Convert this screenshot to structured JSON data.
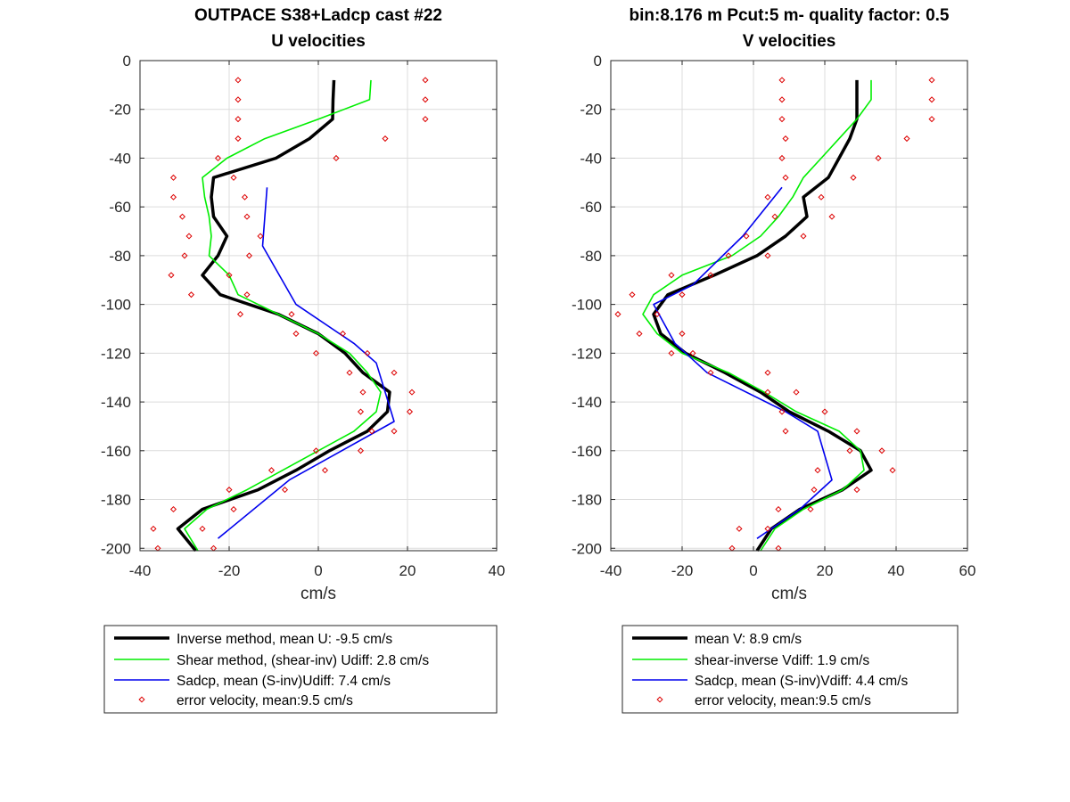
{
  "chart_data": [
    {
      "type": "line",
      "title": "OUTPACE S38+Ladcp cast #22",
      "subtitle": "U velocities",
      "xlabel": "cm/s",
      "ylabel": "",
      "xlim": [
        -40,
        40
      ],
      "ylim": [
        -201,
        0
      ],
      "xticks": [
        -40,
        -20,
        0,
        20,
        40
      ],
      "yticks": [
        0,
        -20,
        -40,
        -60,
        -80,
        -100,
        -120,
        -140,
        -160,
        -180,
        -200
      ],
      "grid": true,
      "legend_position": "below",
      "legend": [
        "Inverse method, mean U:  -9.5 cm/s",
        "Shear method, (shear-inv)  Udiff:  2.8 cm/s",
        "Sadcp, mean (S-inv)Udiff: 7.4 cm/s",
        "error velocity, mean:9.5 cm/s"
      ],
      "series": [
        {
          "color": "#000000",
          "style": "line-thick",
          "points": [
            [
              3.5,
              -8
            ],
            [
              3.3,
              -16
            ],
            [
              3.2,
              -24
            ],
            [
              -2,
              -32
            ],
            [
              -9.5,
              -40
            ],
            [
              -23.5,
              -48
            ],
            [
              -24,
              -56
            ],
            [
              -23.5,
              -64
            ],
            [
              -20.5,
              -72
            ],
            [
              -22.5,
              -80
            ],
            [
              -26,
              -88
            ],
            [
              -22,
              -96
            ],
            [
              -9,
              -104
            ],
            [
              0,
              -112
            ],
            [
              6,
              -120
            ],
            [
              10,
              -128
            ],
            [
              16,
              -136
            ],
            [
              15.5,
              -144
            ],
            [
              11,
              -152
            ],
            [
              2.5,
              -160
            ],
            [
              -5,
              -168
            ],
            [
              -13.5,
              -176
            ],
            [
              -26,
              -184
            ],
            [
              -31.5,
              -192
            ],
            [
              -27.5,
              -201
            ]
          ]
        },
        {
          "color": "#00ee00",
          "style": "line",
          "points": [
            [
              11.8,
              -8
            ],
            [
              11.5,
              -16
            ],
            [
              0,
              -24
            ],
            [
              -12,
              -32
            ],
            [
              -20.5,
              -40
            ],
            [
              -26,
              -48
            ],
            [
              -25.5,
              -56
            ],
            [
              -24.5,
              -64
            ],
            [
              -24,
              -72
            ],
            [
              -24.5,
              -80
            ],
            [
              -20,
              -88
            ],
            [
              -18,
              -96
            ],
            [
              -9,
              -104
            ],
            [
              0,
              -112
            ],
            [
              7,
              -120
            ],
            [
              11,
              -128
            ],
            [
              14,
              -136
            ],
            [
              13,
              -144
            ],
            [
              8,
              -152
            ],
            [
              0,
              -160
            ],
            [
              -8,
              -168
            ],
            [
              -16,
              -176
            ],
            [
              -25,
              -184
            ],
            [
              -30,
              -192
            ],
            [
              -27,
              -201
            ]
          ]
        },
        {
          "color": "#0000ee",
          "style": "line",
          "points": [
            [
              -11.5,
              -52
            ],
            [
              -12.5,
              -76
            ],
            [
              -5,
              -100
            ],
            [
              8,
              -116
            ],
            [
              13,
              -124
            ],
            [
              17,
              -148
            ],
            [
              -6.5,
              -172
            ],
            [
              -22.5,
              -196
            ]
          ]
        },
        {
          "color": "#dd0000",
          "style": "markers",
          "points": [
            [
              -18,
              -8
            ],
            [
              24,
              -8
            ],
            [
              -18,
              -16
            ],
            [
              24,
              -16
            ],
            [
              -18,
              -24
            ],
            [
              24,
              -24
            ],
            [
              -18,
              -32
            ],
            [
              15,
              -32
            ],
            [
              -22.5,
              -40
            ],
            [
              4,
              -40
            ],
            [
              -32.5,
              -48
            ],
            [
              -19,
              -48
            ],
            [
              -32.5,
              -56
            ],
            [
              -16.5,
              -56
            ],
            [
              -30.5,
              -64
            ],
            [
              -16,
              -64
            ],
            [
              -29,
              -72
            ],
            [
              -13,
              -72
            ],
            [
              -30,
              -80
            ],
            [
              -15.5,
              -80
            ],
            [
              -33,
              -88
            ],
            [
              -20,
              -88
            ],
            [
              -28.5,
              -96
            ],
            [
              -16,
              -96
            ],
            [
              -17.5,
              -104
            ],
            [
              -6,
              -104
            ],
            [
              -5,
              -112
            ],
            [
              5.5,
              -112
            ],
            [
              -0.5,
              -120
            ],
            [
              11,
              -120
            ],
            [
              7,
              -128
            ],
            [
              17,
              -128
            ],
            [
              10,
              -136
            ],
            [
              21,
              -136
            ],
            [
              9.5,
              -144
            ],
            [
              20.5,
              -144
            ],
            [
              12,
              -152
            ],
            [
              17,
              -152
            ],
            [
              -0.5,
              -160
            ],
            [
              9.5,
              -160
            ],
            [
              1.5,
              -168
            ],
            [
              -10.5,
              -168
            ],
            [
              -20,
              -176
            ],
            [
              -7.5,
              -176
            ],
            [
              -19,
              -184
            ],
            [
              -32.5,
              -184
            ],
            [
              -37,
              -192
            ],
            [
              -26,
              -192
            ],
            [
              -36,
              -200
            ],
            [
              -23.5,
              -200
            ]
          ]
        }
      ]
    },
    {
      "type": "line",
      "title": "bin:8.176 m  Pcut:5 m- quality factor:  0.5",
      "subtitle": "V velocities",
      "xlabel": "cm/s",
      "ylabel": "",
      "xlim": [
        -40,
        60
      ],
      "ylim": [
        -201,
        0
      ],
      "xticks": [
        -40,
        -20,
        0,
        20,
        40,
        60
      ],
      "yticks": [
        0,
        -20,
        -40,
        -60,
        -80,
        -100,
        -120,
        -140,
        -160,
        -180,
        -200
      ],
      "grid": true,
      "legend_position": "below",
      "legend": [
        "mean V:  8.9 cm/s",
        "shear-inverse Vdiff:  1.9 cm/s",
        "Sadcp, mean (S-inv)Vdiff: 4.4 cm/s",
        "error velocity, mean:9.5 cm/s"
      ],
      "series": [
        {
          "color": "#000000",
          "style": "line-thick",
          "points": [
            [
              29,
              -8
            ],
            [
              29,
              -16
            ],
            [
              29,
              -24
            ],
            [
              27,
              -32
            ],
            [
              24,
              -40
            ],
            [
              21,
              -48
            ],
            [
              14,
              -56
            ],
            [
              15,
              -64
            ],
            [
              9,
              -72
            ],
            [
              1,
              -80
            ],
            [
              -11,
              -88
            ],
            [
              -24,
              -96
            ],
            [
              -28,
              -104
            ],
            [
              -26,
              -112
            ],
            [
              -19,
              -120
            ],
            [
              -8,
              -128
            ],
            [
              2,
              -136
            ],
            [
              10,
              -144
            ],
            [
              21,
              -152
            ],
            [
              30,
              -160
            ],
            [
              33,
              -168
            ],
            [
              25,
              -176
            ],
            [
              13,
              -184
            ],
            [
              5,
              -192
            ],
            [
              1,
              -201
            ]
          ]
        },
        {
          "color": "#00ee00",
          "style": "line",
          "points": [
            [
              33,
              -8
            ],
            [
              33,
              -16
            ],
            [
              29,
              -24
            ],
            [
              24,
              -32
            ],
            [
              19,
              -40
            ],
            [
              14,
              -48
            ],
            [
              11,
              -56
            ],
            [
              7,
              -64
            ],
            [
              2,
              -72
            ],
            [
              -6,
              -80
            ],
            [
              -20,
              -88
            ],
            [
              -28,
              -96
            ],
            [
              -31,
              -104
            ],
            [
              -27,
              -112
            ],
            [
              -20,
              -120
            ],
            [
              -7,
              -128
            ],
            [
              3,
              -136
            ],
            [
              12,
              -144
            ],
            [
              24,
              -152
            ],
            [
              30,
              -160
            ],
            [
              31,
              -168
            ],
            [
              25,
              -176
            ],
            [
              14,
              -184
            ],
            [
              6,
              -192
            ],
            [
              2,
              -201
            ]
          ]
        },
        {
          "color": "#0000ee",
          "style": "line",
          "points": [
            [
              8,
              -52
            ],
            [
              -3,
              -72
            ],
            [
              -17,
              -92
            ],
            [
              -28,
              -100
            ],
            [
              -22,
              -116
            ],
            [
              -13,
              -128
            ],
            [
              9,
              -144
            ],
            [
              18,
              -152
            ],
            [
              22,
              -172
            ],
            [
              13,
              -184
            ],
            [
              1,
              -196
            ]
          ]
        },
        {
          "color": "#dd0000",
          "style": "markers",
          "points": [
            [
              8,
              -8
            ],
            [
              50,
              -8
            ],
            [
              8,
              -16
            ],
            [
              50,
              -16
            ],
            [
              8,
              -24
            ],
            [
              50,
              -24
            ],
            [
              9,
              -32
            ],
            [
              43,
              -32
            ],
            [
              8,
              -40
            ],
            [
              35,
              -40
            ],
            [
              9,
              -48
            ],
            [
              28,
              -48
            ],
            [
              4,
              -56
            ],
            [
              19,
              -56
            ],
            [
              6,
              -64
            ],
            [
              22,
              -64
            ],
            [
              -2,
              -72
            ],
            [
              14,
              -72
            ],
            [
              -7,
              -80
            ],
            [
              4,
              -80
            ],
            [
              -23,
              -88
            ],
            [
              -12,
              -88
            ],
            [
              -34,
              -96
            ],
            [
              -20,
              -96
            ],
            [
              -38,
              -104
            ],
            [
              -27,
              -104
            ],
            [
              -32,
              -112
            ],
            [
              -20,
              -112
            ],
            [
              -23,
              -120
            ],
            [
              -17,
              -120
            ],
            [
              -12,
              -128
            ],
            [
              4,
              -128
            ],
            [
              4,
              -136
            ],
            [
              12,
              -136
            ],
            [
              8,
              -144
            ],
            [
              20,
              -144
            ],
            [
              9,
              -152
            ],
            [
              29,
              -152
            ],
            [
              27,
              -160
            ],
            [
              36,
              -160
            ],
            [
              18,
              -168
            ],
            [
              39,
              -168
            ],
            [
              17,
              -176
            ],
            [
              29,
              -176
            ],
            [
              16,
              -184
            ],
            [
              7,
              -184
            ],
            [
              -4,
              -192
            ],
            [
              4,
              -192
            ],
            [
              -6,
              -200
            ],
            [
              7,
              -200
            ]
          ]
        }
      ]
    }
  ]
}
